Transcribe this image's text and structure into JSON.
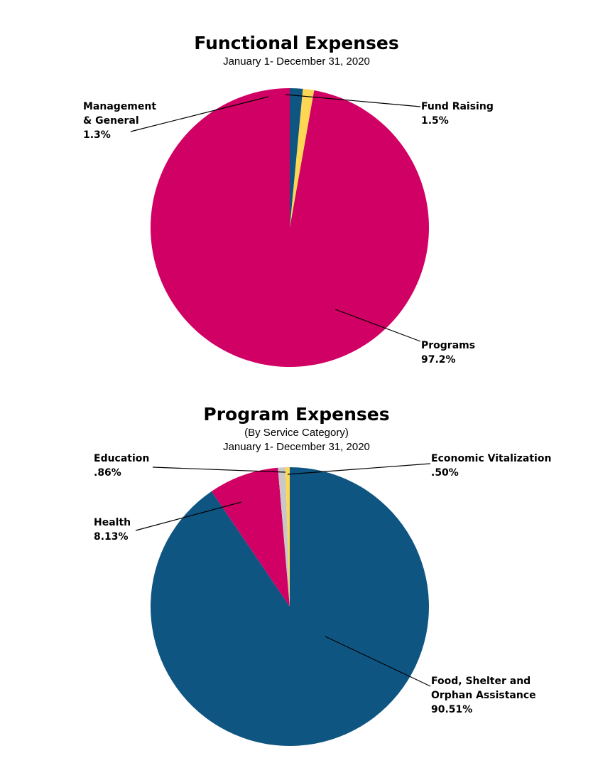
{
  "chart_data": [
    {
      "type": "pie",
      "title": "Functional Expenses",
      "subtitle": "January 1- December 31, 2020",
      "slices": [
        {
          "label_lines": [
            "Programs"
          ],
          "value_text": "97.2%",
          "value": 97.2,
          "color": "#d10064"
        },
        {
          "label_lines": [
            "Management",
            "& General"
          ],
          "value_text": "1.3%",
          "value": 1.3,
          "color": "#fdd754"
        },
        {
          "label_lines": [
            "Fund Raising"
          ],
          "value_text": "1.5%",
          "value": 1.5,
          "color": "#0f5582"
        }
      ]
    },
    {
      "type": "pie",
      "title": "Program Expenses",
      "subtitle": "(By Service Category)",
      "subtitle2": "January 1- December 31, 2020",
      "slices": [
        {
          "label_lines": [
            "Food, Shelter and",
            "Orphan Assistance"
          ],
          "value_text": "90.51%",
          "value": 90.51,
          "color": "#0f5582"
        },
        {
          "label_lines": [
            "Health"
          ],
          "value_text": "8.13%",
          "value": 8.13,
          "color": "#d10064"
        },
        {
          "label_lines": [
            "Education"
          ],
          "value_text": ".86%",
          "value": 0.86,
          "color": "#c8c8c8"
        },
        {
          "label_lines": [
            "Economic Vitalization"
          ],
          "value_text": ".50%",
          "value": 0.5,
          "color": "#fdd754"
        }
      ]
    }
  ]
}
